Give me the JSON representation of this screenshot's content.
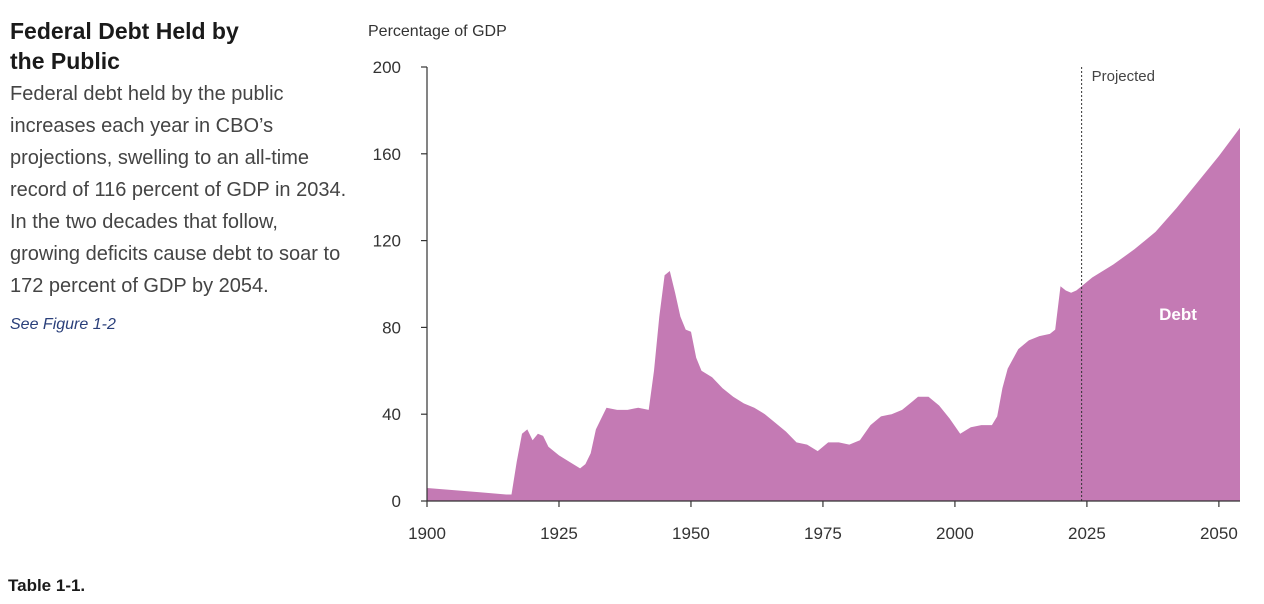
{
  "sidebar": {
    "title": "Federal Debt Held by the Public",
    "body": "Federal debt held by the public increases each year in CBO’s projections, swelling to an all-time record of 116 percent of GDP in 2034. In the two decades that follow, growing deficits cause debt to soar to 172 percent of GDP by 2054.",
    "link": "See Figure 1-2"
  },
  "footer": {
    "table_ref": "Table 1-1."
  },
  "colors": {
    "area": "#c47ab4",
    "axis": "#333333",
    "text": "#333333"
  },
  "chart_data": {
    "type": "area",
    "title": "",
    "ylabel": "Percentage of GDP",
    "xlabel": "",
    "xlim": [
      1900,
      2054
    ],
    "ylim": [
      0,
      200
    ],
    "x_ticks": [
      1900,
      1925,
      1950,
      1975,
      2000,
      2025,
      2050
    ],
    "y_ticks": [
      0,
      40,
      80,
      120,
      160,
      200
    ],
    "grid": false,
    "projection_start": 2024,
    "projection_label": "Projected",
    "series": [
      {
        "name": "Debt",
        "points": [
          [
            1900,
            6
          ],
          [
            1905,
            5
          ],
          [
            1910,
            4
          ],
          [
            1915,
            3
          ],
          [
            1916,
            3
          ],
          [
            1917,
            18
          ],
          [
            1918,
            31
          ],
          [
            1919,
            33
          ],
          [
            1920,
            28
          ],
          [
            1921,
            31
          ],
          [
            1922,
            30
          ],
          [
            1923,
            25
          ],
          [
            1925,
            21
          ],
          [
            1927,
            18
          ],
          [
            1929,
            15
          ],
          [
            1930,
            17
          ],
          [
            1931,
            22
          ],
          [
            1932,
            33
          ],
          [
            1933,
            38
          ],
          [
            1934,
            43
          ],
          [
            1936,
            42
          ],
          [
            1938,
            42
          ],
          [
            1940,
            43
          ],
          [
            1942,
            42
          ],
          [
            1943,
            60
          ],
          [
            1944,
            85
          ],
          [
            1945,
            104
          ],
          [
            1946,
            106
          ],
          [
            1947,
            96
          ],
          [
            1948,
            85
          ],
          [
            1949,
            79
          ],
          [
            1950,
            78
          ],
          [
            1951,
            66
          ],
          [
            1952,
            60
          ],
          [
            1954,
            57
          ],
          [
            1956,
            52
          ],
          [
            1958,
            48
          ],
          [
            1960,
            45
          ],
          [
            1962,
            43
          ],
          [
            1964,
            40
          ],
          [
            1966,
            36
          ],
          [
            1968,
            32
          ],
          [
            1970,
            27
          ],
          [
            1972,
            26
          ],
          [
            1974,
            23
          ],
          [
            1976,
            27
          ],
          [
            1978,
            27
          ],
          [
            1980,
            26
          ],
          [
            1982,
            28
          ],
          [
            1984,
            35
          ],
          [
            1986,
            39
          ],
          [
            1988,
            40
          ],
          [
            1990,
            42
          ],
          [
            1992,
            46
          ],
          [
            1993,
            48
          ],
          [
            1995,
            48
          ],
          [
            1997,
            44
          ],
          [
            1999,
            38
          ],
          [
            2001,
            31
          ],
          [
            2003,
            34
          ],
          [
            2005,
            35
          ],
          [
            2007,
            35
          ],
          [
            2008,
            39
          ],
          [
            2009,
            52
          ],
          [
            2010,
            61
          ],
          [
            2012,
            70
          ],
          [
            2014,
            74
          ],
          [
            2016,
            76
          ],
          [
            2018,
            77
          ],
          [
            2019,
            79
          ],
          [
            2020,
            99
          ],
          [
            2021,
            97
          ],
          [
            2022,
            96
          ],
          [
            2023,
            97
          ],
          [
            2024,
            99
          ],
          [
            2026,
            103
          ],
          [
            2030,
            109
          ],
          [
            2034,
            116
          ],
          [
            2038,
            124
          ],
          [
            2042,
            135
          ],
          [
            2046,
            147
          ],
          [
            2050,
            159
          ],
          [
            2054,
            172
          ]
        ]
      }
    ]
  }
}
